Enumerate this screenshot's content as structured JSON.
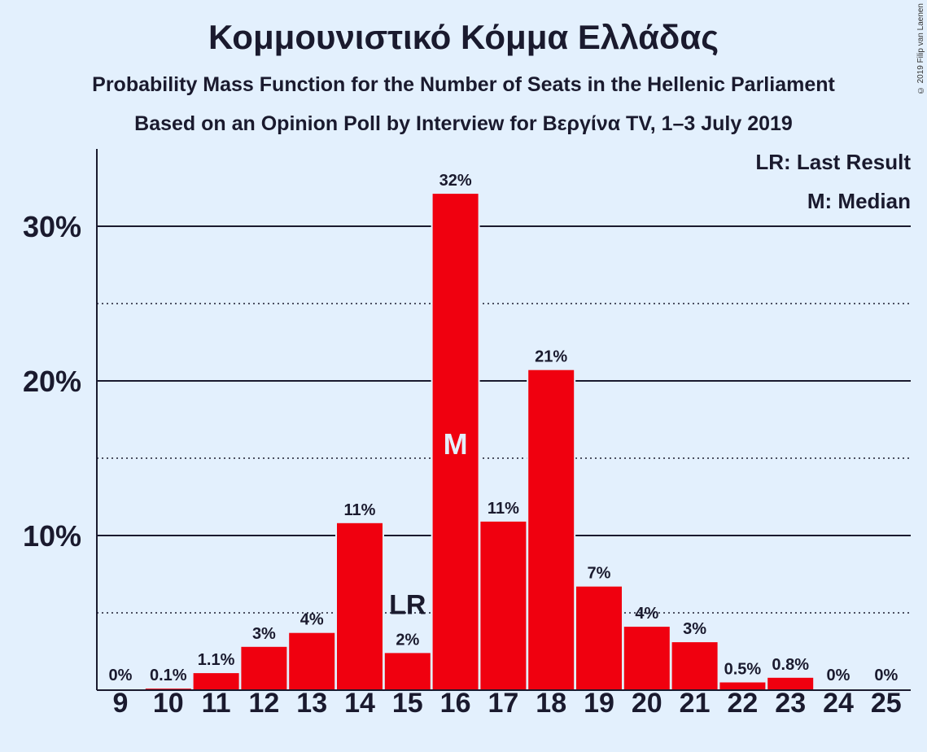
{
  "chart_data": {
    "type": "bar",
    "title": "Κομμουνιστικό Κόμμα Ελλάδας",
    "subtitle_1": "Probability Mass Function for the Number of Seats in the Hellenic Parliament",
    "subtitle_2": "Based on an Opinion Poll by Interview for Βεργίνα TV, 1–3 July 2019",
    "copyright": "© 2019 Filip van Laenen",
    "categories": [
      "9",
      "10",
      "11",
      "12",
      "13",
      "14",
      "15",
      "16",
      "17",
      "18",
      "19",
      "20",
      "21",
      "22",
      "23",
      "24",
      "25"
    ],
    "values": [
      0,
      0.1,
      1.1,
      2.8,
      3.7,
      10.8,
      2.4,
      32.1,
      10.9,
      20.7,
      6.7,
      4.1,
      3.1,
      0.5,
      0.8,
      0,
      0
    ],
    "data_labels": [
      "0%",
      "0.1%",
      "1.1%",
      "3%",
      "4%",
      "11%",
      "2%",
      "32%",
      "11%",
      "21%",
      "7%",
      "4%",
      "3%",
      "0.5%",
      "0.8%",
      "0%",
      "0%"
    ],
    "ylim": [
      0,
      35
    ],
    "y_major_ticks": [
      10,
      20,
      30
    ],
    "y_tick_labels": [
      "10%",
      "20%",
      "30%"
    ],
    "y_minor_ticks": [
      5,
      15,
      25
    ],
    "last_result": {
      "category": "15",
      "label": "LR"
    },
    "median": {
      "category": "16",
      "label": "M"
    },
    "legend": {
      "last_result": "LR: Last Result",
      "median": "M: Median"
    },
    "colors": {
      "bar": "#f0000f",
      "background": "#e3f0fd",
      "text": "#1a1a2e",
      "median_label": "#e3f0fd"
    }
  }
}
